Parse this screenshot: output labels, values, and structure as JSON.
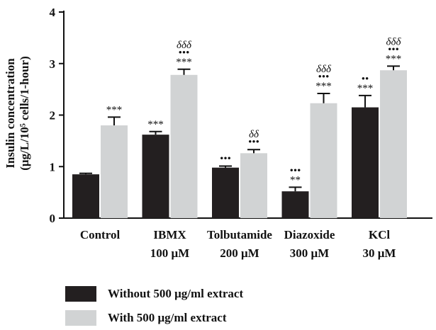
{
  "chart_data": {
    "type": "bar",
    "title": "",
    "ylabel": "Insulin concentration",
    "ylabel_line2": "(μg/L/10⁵ cells/1-hour)",
    "ylim": [
      0,
      4
    ],
    "yticks": [
      "0",
      "1",
      "2",
      "3",
      "4"
    ],
    "categories": [
      {
        "line1": "Control",
        "line2": ""
      },
      {
        "line1": "IBMX",
        "line2": "100 μM"
      },
      {
        "line1": "Tolbutamide",
        "line2": "200 μM"
      },
      {
        "line1": "Diazoxide",
        "line2": "300 μM"
      },
      {
        "line1": "KCl",
        "line2": "30 μM"
      }
    ],
    "series": [
      {
        "name": "Without 500 μg/ml extract",
        "color": "#231f20",
        "values": [
          0.85,
          1.62,
          0.98,
          0.52,
          2.15
        ],
        "errors": [
          0.02,
          0.06,
          0.03,
          0.08,
          0.23
        ],
        "annotations": [
          [],
          [
            "***"
          ],
          [
            "•••"
          ],
          [
            "•••",
            "**"
          ],
          [
            "••",
            "***"
          ]
        ]
      },
      {
        "name": "With 500 μg/ml extract",
        "color": "#d1d3d4",
        "values": [
          1.8,
          2.78,
          1.26,
          2.23,
          2.87
        ],
        "errors": [
          0.16,
          0.11,
          0.07,
          0.19,
          0.08
        ],
        "annotations": [
          [
            "***"
          ],
          [
            "δδδ",
            "•••",
            "***"
          ],
          [
            "δδ",
            "•••"
          ],
          [
            "δδδ",
            "•••",
            "***"
          ],
          [
            "δδδ",
            "•••",
            "***"
          ]
        ]
      }
    ],
    "grid": false,
    "legend_position": "bottom-left"
  }
}
